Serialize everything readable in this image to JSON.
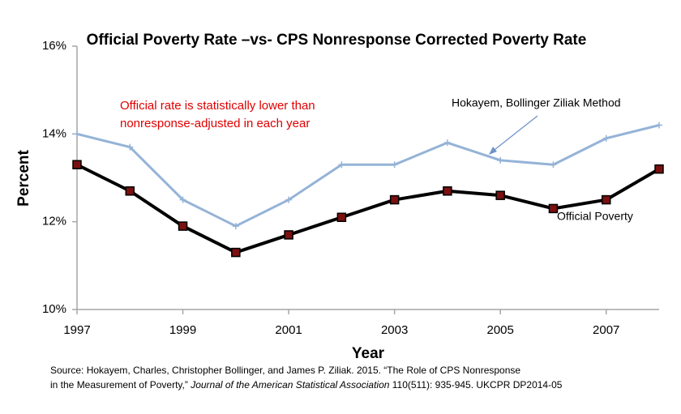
{
  "chart_data": {
    "type": "line",
    "title": "Official Poverty Rate –vs- CPS Nonresponse Corrected Poverty Rate",
    "x_label": "Year",
    "y_label": "Percent",
    "x": [
      1997,
      1998,
      1999,
      2000,
      2001,
      2002,
      2003,
      2004,
      2005,
      2006,
      2007,
      2008
    ],
    "series": [
      {
        "name": "Hokayem, Bollinger Ziliak Method",
        "color": "#95b3d7",
        "marker": "plus",
        "values": [
          14.0,
          13.7,
          12.5,
          11.9,
          12.5,
          13.3,
          13.3,
          13.8,
          13.4,
          13.3,
          13.9,
          14.2
        ]
      },
      {
        "name": "Official Poverty",
        "color": "#000000",
        "marker": "square",
        "values": [
          13.3,
          12.7,
          11.9,
          11.3,
          11.7,
          12.1,
          12.5,
          12.7,
          12.6,
          12.3,
          12.5,
          13.2
        ]
      }
    ],
    "xlim": [
      1997,
      2008
    ],
    "xticks": [
      1997,
      1999,
      2001,
      2003,
      2005,
      2007
    ],
    "ylim": [
      10,
      16
    ],
    "yticks": [
      {
        "value": 10,
        "label": "10%"
      },
      {
        "value": 12,
        "label": "12%"
      },
      {
        "value": 14,
        "label": "14%"
      },
      {
        "value": 16,
        "label": "16%"
      }
    ],
    "grid": false,
    "annotation": [
      "Official rate is statistically lower than",
      "nonresponse-adjusted  in each year"
    ],
    "source": {
      "line1": "Source: Hokayem,  Charles, Christopher Bollinger, and James P. Ziliak. 2015. “The Role of CPS Nonresponse",
      "line2_start": "in the Measurement of Poverty,” ",
      "journal": "Journal of the American Statistical Association",
      "line2_end": " 110(511): 935-945. UKCPR DP2014-05"
    }
  }
}
